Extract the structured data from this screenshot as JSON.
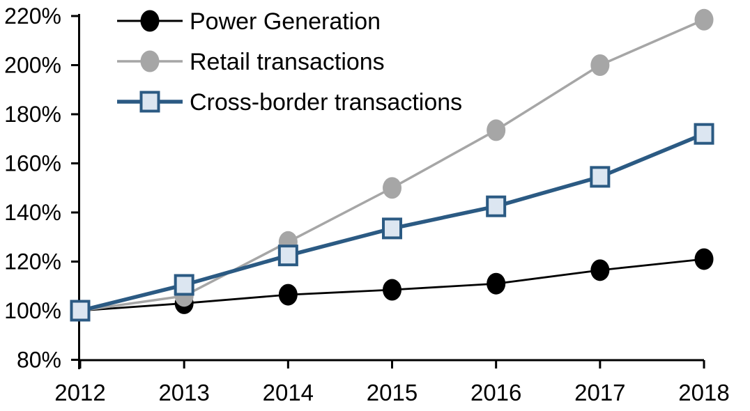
{
  "chart_data": {
    "type": "line",
    "title": "",
    "xlabel": "",
    "ylabel": "",
    "categories": [
      "2012",
      "2013",
      "2014",
      "2015",
      "2016",
      "2017",
      "2018"
    ],
    "series": [
      {
        "name": "Power Generation",
        "values": [
          100,
          103,
          106.5,
          108.5,
          111,
          116.5,
          121
        ],
        "color": "#000000",
        "marker": "circle",
        "marker_fill": "#000000",
        "line_width": 2.8
      },
      {
        "name": "Retail transactions",
        "values": [
          100,
          106,
          128,
          150,
          173.5,
          200,
          218.5
        ],
        "color": "#A6A6A6",
        "marker": "circle",
        "marker_fill": "#A6A6A6",
        "line_width": 3.5
      },
      {
        "name": "Cross-border transactions",
        "values": [
          100,
          110.5,
          122.5,
          133.5,
          142.5,
          154.5,
          172
        ],
        "color": "#2B5A83",
        "marker": "square",
        "marker_fill": "#DCE6F1",
        "line_width": 5.5
      }
    ],
    "ylim": [
      80,
      220
    ],
    "y_tick_step": 20,
    "y_tick_labels": [
      "80%",
      "100%",
      "120%",
      "140%",
      "160%",
      "180%",
      "200%",
      "220%"
    ],
    "x_tick_labels": [
      "2012",
      "2013",
      "2014",
      "2015",
      "2016",
      "2017",
      "2018"
    ],
    "grid": false,
    "legend_position": "top-left",
    "background": "#FFFFFF",
    "axis_color": "#000000"
  }
}
